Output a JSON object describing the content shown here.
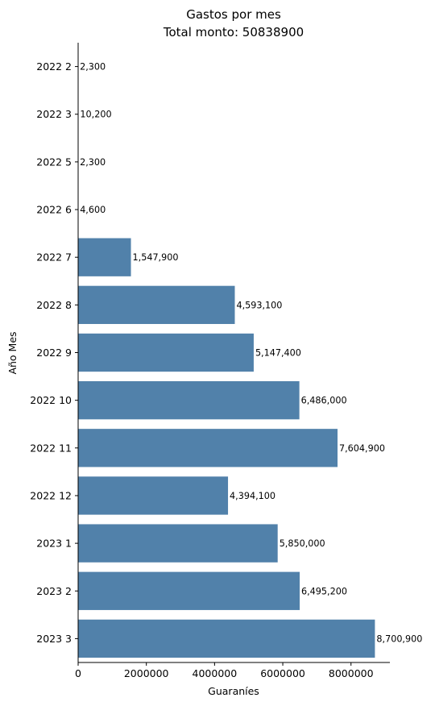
{
  "chart_data": {
    "type": "bar",
    "orientation": "horizontal",
    "title": "Gastos por mes",
    "subtitle": "Total monto: 50838900",
    "xlabel": "Guaraníes",
    "ylabel": "Año Mes",
    "categories": [
      "2022 2",
      "2022 3",
      "2022 5",
      "2022 6",
      "2022 7",
      "2022 8",
      "2022 9",
      "2022 10",
      "2022 11",
      "2022 12",
      "2023 1",
      "2023 2",
      "2023 3"
    ],
    "values": [
      2300,
      10200,
      2300,
      4600,
      1547900,
      4593100,
      5147400,
      6486000,
      7604900,
      4394100,
      5850000,
      6495200,
      8700900
    ],
    "value_labels": [
      "2,300",
      "10,200",
      "2,300",
      "4,600",
      "1,547,900",
      "4,593,100",
      "5,147,400",
      "6,486,000",
      "7,604,900",
      "4,394,100",
      "5,850,000",
      "6,495,200",
      "8,700,900"
    ],
    "xticks": [
      0,
      2000000,
      4000000,
      6000000,
      8000000
    ],
    "xtick_labels": [
      "0",
      "2000000",
      "4000000",
      "6000000",
      "8000000"
    ],
    "xlim": [
      0,
      9140000
    ],
    "grid": false,
    "legend": "none",
    "bar_color": "#5181aa"
  }
}
